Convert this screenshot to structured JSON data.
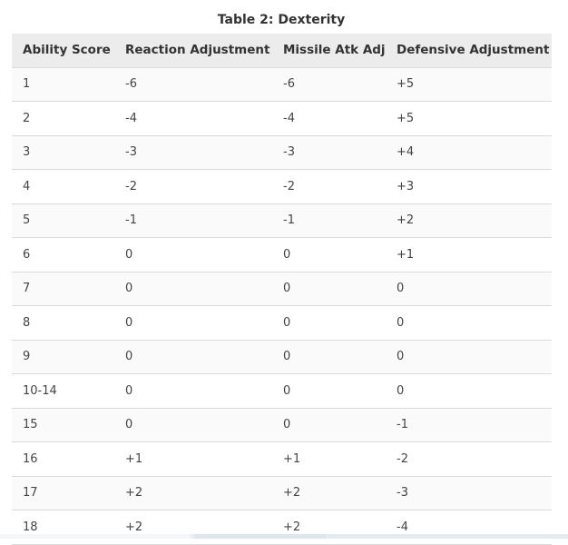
{
  "table": {
    "caption": "Table 2: Dexterity",
    "headers": [
      "Ability Score",
      "Reaction Adjustment",
      "Missile Atk Adj",
      "Defensive Adjustment"
    ],
    "rows": [
      [
        "1",
        "-6",
        "-6",
        "+5"
      ],
      [
        "2",
        "-4",
        "-4",
        "+5"
      ],
      [
        "3",
        "-3",
        "-3",
        "+4"
      ],
      [
        "4",
        "-2",
        "-2",
        "+3"
      ],
      [
        "5",
        "-1",
        "-1",
        "+2"
      ],
      [
        "6",
        "0",
        "0",
        "+1"
      ],
      [
        "7",
        "0",
        "0",
        "0"
      ],
      [
        "8",
        "0",
        "0",
        "0"
      ],
      [
        "9",
        "0",
        "0",
        "0"
      ],
      [
        "10-14",
        "0",
        "0",
        "0"
      ],
      [
        "15",
        "0",
        "0",
        "-1"
      ],
      [
        "16",
        "+1",
        "+1",
        "-2"
      ],
      [
        "17",
        "+2",
        "+2",
        "-3"
      ],
      [
        "18",
        "+2",
        "+2",
        "-4"
      ]
    ]
  }
}
